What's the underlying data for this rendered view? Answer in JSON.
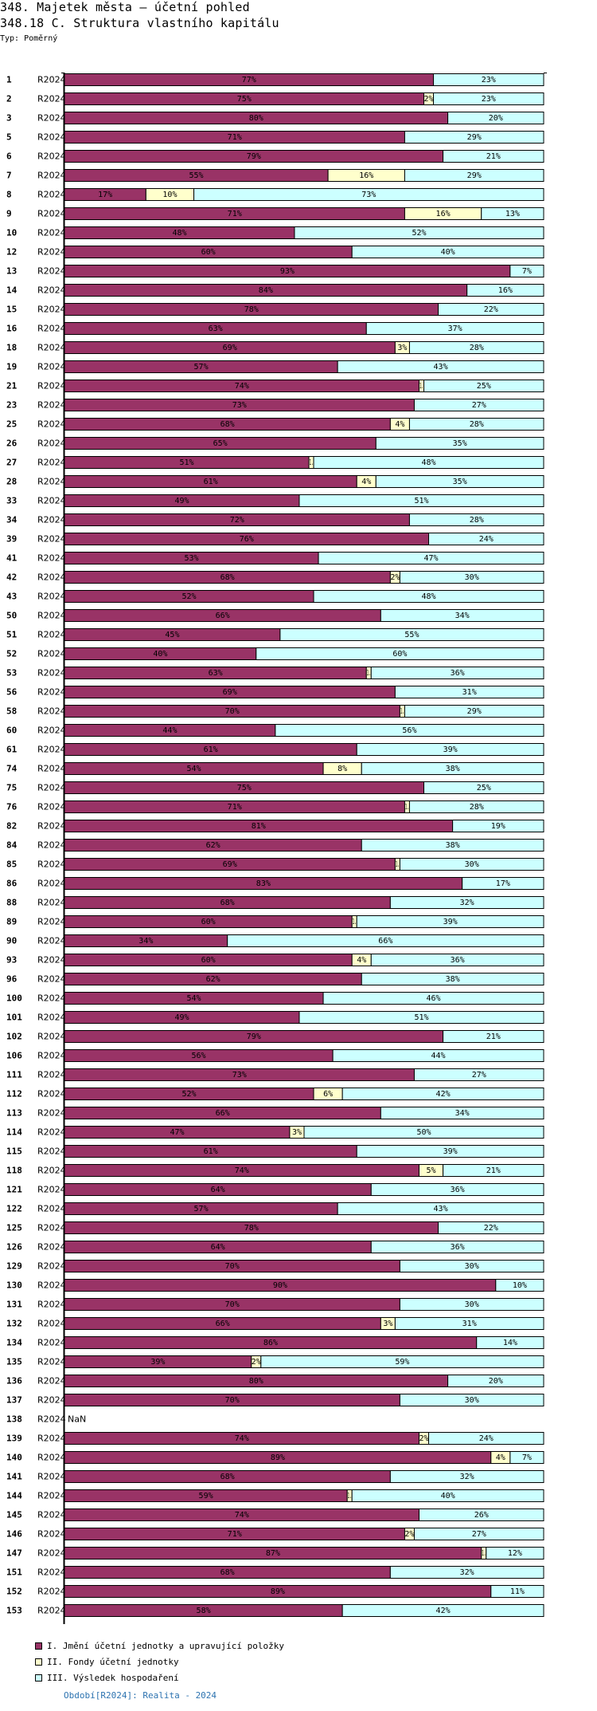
{
  "header": {
    "title": "348. Majetek města – účetní pohled",
    "subtitle": "348.18 C. Struktura vlastního kapitálu",
    "type_line": "Typ: Poměrný"
  },
  "colors": {
    "series_1": "#993366",
    "series_2": "#ffffcc",
    "series_3": "#ccffff",
    "footer_text": "#2d73b0"
  },
  "footer": "Období[R2024]: Realita - 2024",
  "chart_data": {
    "type": "bar",
    "orientation": "horizontal",
    "stacked": "percent",
    "title": "348.18 C. Struktura vlastního kapitálu",
    "xlabel": "",
    "ylabel": "",
    "xlim": [
      0,
      100
    ],
    "grid": false,
    "legend_position": "bottom-left",
    "period_label": "R2024",
    "categories": [
      "1",
      "2",
      "3",
      "5",
      "6",
      "7",
      "8",
      "9",
      "10",
      "12",
      "13",
      "14",
      "15",
      "16",
      "18",
      "19",
      "21",
      "23",
      "25",
      "26",
      "27",
      "28",
      "33",
      "34",
      "39",
      "41",
      "42",
      "43",
      "50",
      "51",
      "52",
      "53",
      "56",
      "58",
      "60",
      "61",
      "74",
      "75",
      "76",
      "82",
      "84",
      "85",
      "86",
      "88",
      "89",
      "90",
      "93",
      "96",
      "100",
      "101",
      "102",
      "106",
      "111",
      "112",
      "113",
      "114",
      "115",
      "118",
      "121",
      "122",
      "125",
      "126",
      "129",
      "130",
      "131",
      "132",
      "134",
      "135",
      "136",
      "137",
      "138",
      "139",
      "140",
      "141",
      "144",
      "145",
      "146",
      "147",
      "151",
      "152",
      "153"
    ],
    "series": [
      {
        "name": "I. Jmění účetní jednotky a upravující položky",
        "color": "#993366",
        "values": [
          77,
          75,
          80,
          71,
          79,
          55,
          17,
          71,
          48,
          60,
          93,
          84,
          78,
          63,
          69,
          57,
          74,
          73,
          68,
          65,
          51,
          61,
          49,
          72,
          76,
          53,
          68,
          52,
          66,
          45,
          40,
          63,
          69,
          70,
          44,
          61,
          54,
          75,
          71,
          81,
          62,
          69,
          83,
          68,
          60,
          34,
          60,
          62,
          54,
          49,
          79,
          56,
          73,
          52,
          66,
          47,
          61,
          74,
          64,
          57,
          78,
          64,
          70,
          90,
          70,
          66,
          86,
          39,
          80,
          70,
          null,
          74,
          89,
          68,
          59,
          74,
          71,
          87,
          68,
          89,
          58
        ]
      },
      {
        "name": "II. Fondy účetní jednotky",
        "color": "#ffffcc",
        "values": [
          0,
          2,
          0,
          0,
          0,
          16,
          10,
          16,
          0,
          0,
          0,
          0,
          0,
          0,
          3,
          0,
          1,
          0,
          4,
          0,
          1,
          4,
          0,
          0,
          0,
          0,
          2,
          0,
          0,
          0,
          0,
          1,
          0,
          1,
          0,
          0,
          8,
          0,
          1,
          0,
          0,
          1,
          0,
          0,
          1,
          0,
          4,
          0,
          0,
          0,
          0,
          0,
          0,
          6,
          0,
          3,
          0,
          5,
          0,
          0,
          0,
          0,
          0,
          0,
          0,
          3,
          0,
          2,
          0,
          0,
          null,
          2,
          4,
          0,
          1,
          0,
          2,
          1,
          0,
          0,
          0
        ]
      },
      {
        "name": "III. Výsledek hospodaření",
        "color": "#ccffff",
        "values": [
          23,
          23,
          20,
          29,
          21,
          29,
          73,
          13,
          52,
          40,
          7,
          16,
          22,
          37,
          28,
          43,
          25,
          27,
          28,
          35,
          48,
          35,
          51,
          28,
          24,
          47,
          30,
          48,
          34,
          55,
          60,
          36,
          31,
          29,
          56,
          39,
          38,
          25,
          28,
          19,
          38,
          30,
          17,
          32,
          39,
          66,
          36,
          38,
          46,
          51,
          21,
          44,
          27,
          42,
          34,
          50,
          39,
          21,
          36,
          43,
          22,
          36,
          30,
          10,
          30,
          31,
          14,
          59,
          20,
          30,
          null,
          24,
          7,
          32,
          40,
          26,
          27,
          12,
          32,
          11,
          42
        ]
      }
    ],
    "missing_label": "NaN"
  }
}
